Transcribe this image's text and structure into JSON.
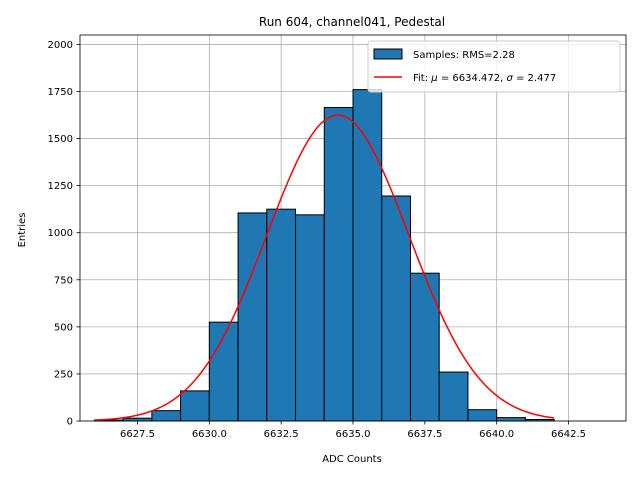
{
  "chart_data": {
    "type": "bar",
    "title": "Run 604, channel041, Pedestal",
    "xlabel": "ADC Counts",
    "ylabel": "Entries",
    "xlim": [
      6625.5,
      6644.5
    ],
    "ylim": [
      0,
      2050
    ],
    "grid": true,
    "x_ticks": [
      6627.5,
      6630.0,
      6632.5,
      6635.0,
      6637.5,
      6640.0,
      6642.5
    ],
    "x_tick_labels": [
      "6627.5",
      "6630.0",
      "6632.5",
      "6635.0",
      "6637.5",
      "6640.0",
      "6642.5"
    ],
    "y_ticks": [
      0,
      250,
      500,
      750,
      1000,
      1250,
      1500,
      1750,
      2000
    ],
    "y_tick_labels": [
      "0",
      "250",
      "500",
      "750",
      "1000",
      "1250",
      "1500",
      "1750",
      "2000"
    ],
    "histogram": {
      "name": "Samples: RMS=2.28",
      "color": "#1f77b4",
      "edge_color": "#000000",
      "bin_edges": [
        6626,
        6627,
        6628,
        6629,
        6630,
        6631,
        6632,
        6633,
        6634,
        6635,
        6636,
        6637,
        6638,
        6639,
        6640,
        6641,
        6642
      ],
      "counts": [
        5,
        15,
        55,
        160,
        525,
        1105,
        1125,
        1095,
        1665,
        1760,
        1195,
        785,
        260,
        60,
        18,
        8
      ]
    },
    "fit": {
      "name": "Fit: μ = 6634.472, σ = 2.477",
      "color": "#ff0000",
      "mu": 6634.472,
      "sigma": 2.477,
      "amplitude": 1625,
      "x_range": [
        6626,
        6642
      ]
    },
    "legend": {
      "position": "upper right",
      "entries": [
        {
          "prefix": "Samples: RMS=2.28",
          "mu_text": "",
          "sigma_text": ""
        },
        {
          "prefix": "Fit: ",
          "mu_symbol": "μ",
          "mu_text": " = 6634.472, ",
          "sigma_symbol": "σ",
          "sigma_text": " = 2.477"
        }
      ]
    }
  }
}
